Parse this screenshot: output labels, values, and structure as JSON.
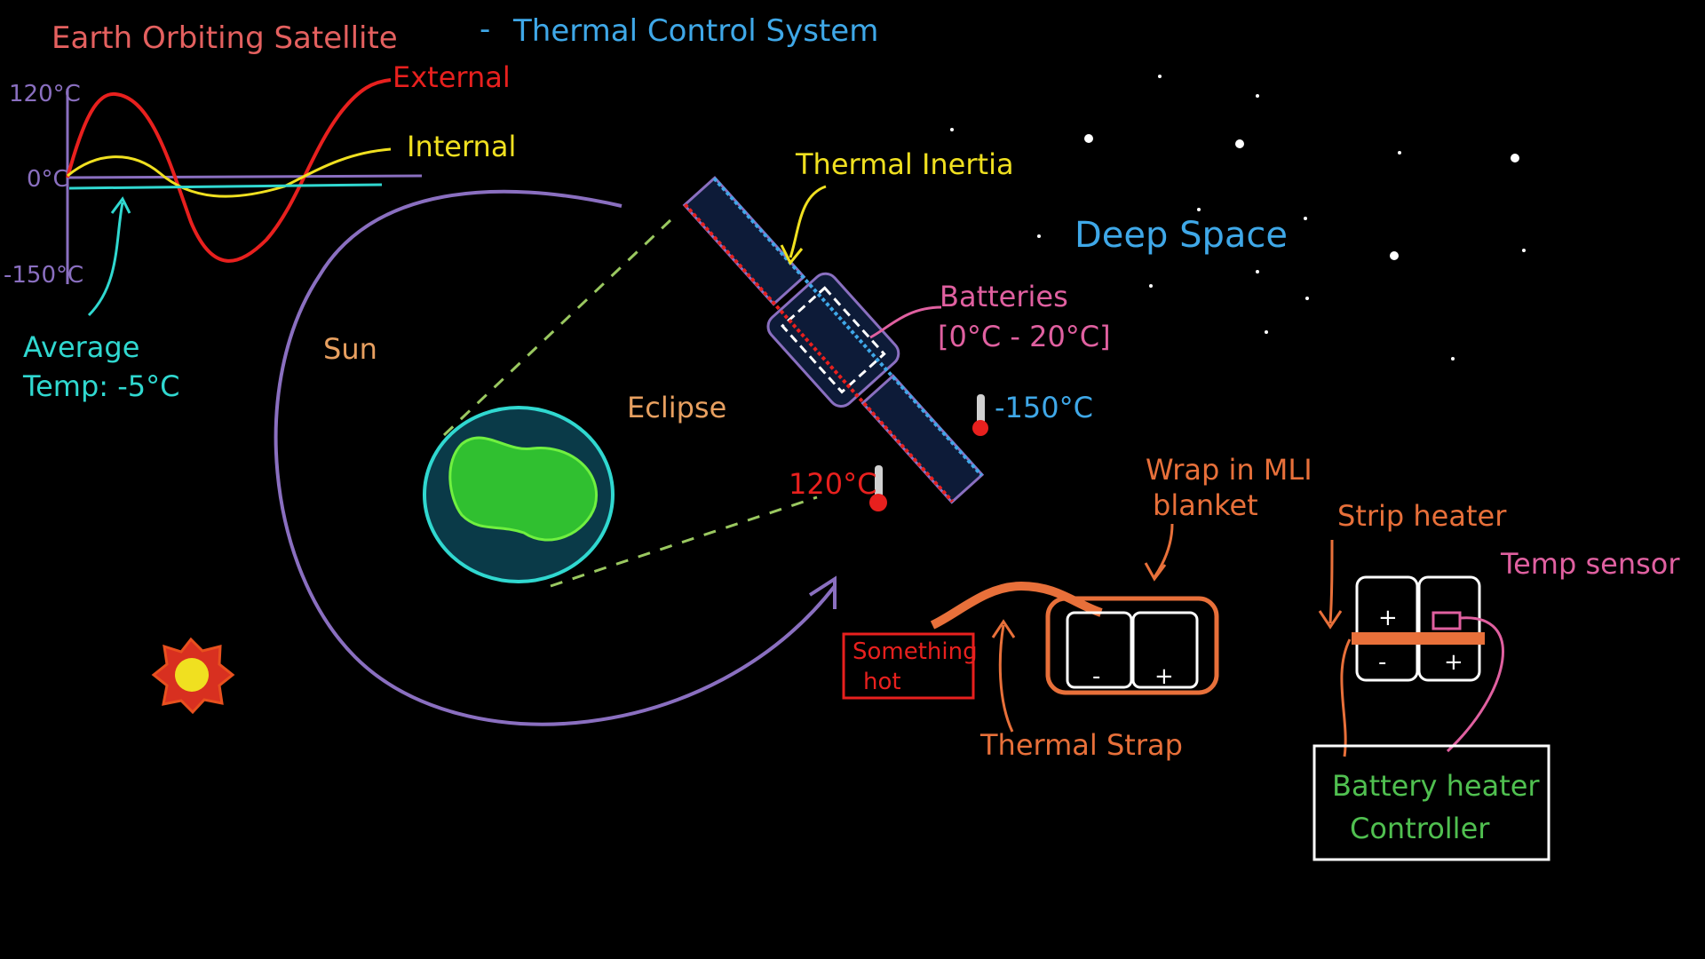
{
  "title": {
    "part1": "Earth Orbiting Satellite",
    "separator": "-",
    "part2": "Thermal Control System"
  },
  "temp_graph": {
    "y_tick_top": "120°C",
    "y_tick_mid": "0°C",
    "y_tick_bottom": "-150°C",
    "series_external": "External",
    "series_internal": "Internal",
    "average_line1": "Average",
    "average_line2": "Temp: -5°C"
  },
  "orbit": {
    "sun_label": "Sun",
    "eclipse_label": "Eclipse"
  },
  "satellite": {
    "thermal_inertia": "Thermal Inertia",
    "batteries": "Batteries",
    "battery_range": "[0°C - 20°C]",
    "cold_temp": "-150°C",
    "hot_temp": "120°C",
    "deep_space": "Deep Space"
  },
  "mli_diagram": {
    "wrap_line1": "Wrap in MLI",
    "wrap_line2": "blanket",
    "hot_line1": "Something",
    "hot_line2": "hot",
    "thermal_strap": "Thermal Strap"
  },
  "heater_diagram": {
    "strip_heater": "Strip heater",
    "temp_sensor": "Temp sensor",
    "controller_line1": "Battery heater",
    "controller_line2": "Controller"
  },
  "colors": {
    "title_red": "#e4605f",
    "title_blue": "#3fa8e8",
    "external": "#e8201e",
    "internal": "#f0e020",
    "average": "#30d8d0",
    "axis": "#8a6fc0",
    "orbit": "#8a6fc0",
    "sun_label": "#e8a060",
    "deep_space": "#3fa8e8",
    "batteries": "#e060a0",
    "strap": "#e8703a",
    "controller_text": "#50c050"
  }
}
